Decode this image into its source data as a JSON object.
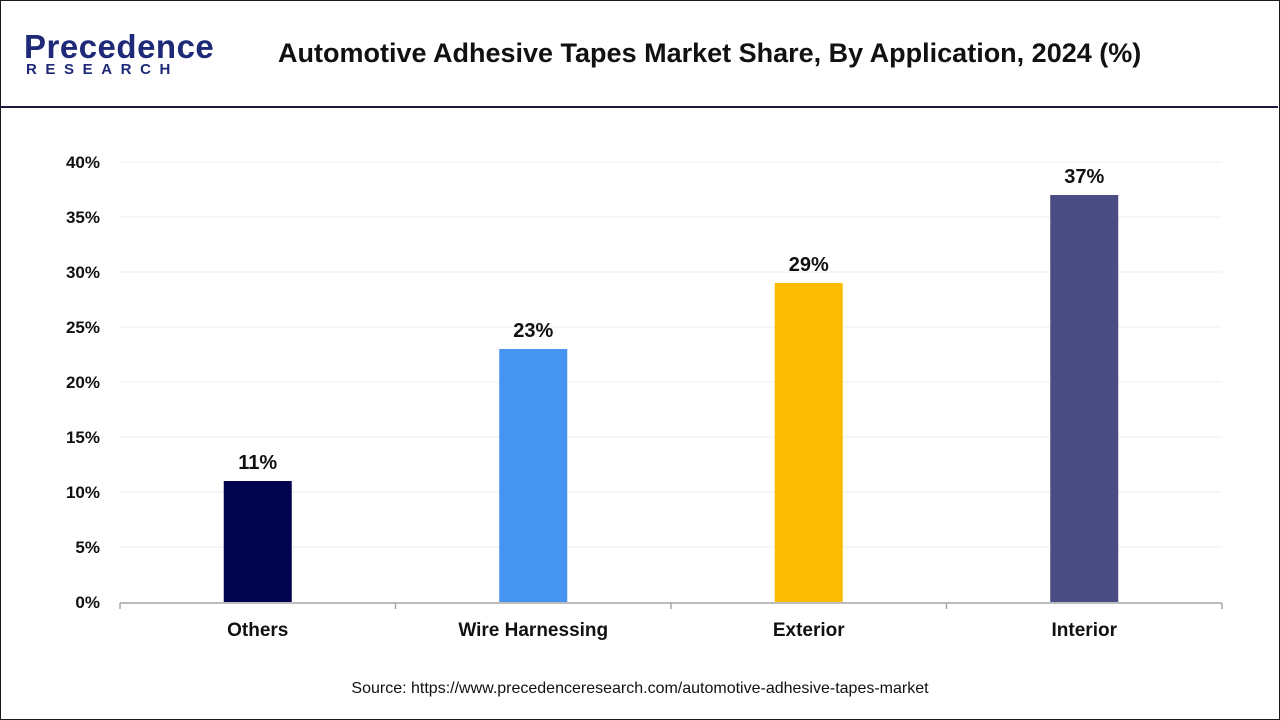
{
  "logo": {
    "main": "Precedence",
    "sub": "RESEARCH"
  },
  "header": {
    "title": "Automotive Adhesive Tapes Market Share, By Application, 2024 (%)"
  },
  "chart_data": {
    "type": "bar",
    "title": "Automotive Adhesive Tapes Market Share, By Application, 2024 (%)",
    "categories": [
      "Others",
      "Wire Harnessing",
      "Exterior",
      "Interior"
    ],
    "values": [
      11,
      23,
      29,
      37
    ],
    "data_labels": [
      "11%",
      "23%",
      "29%",
      "37%"
    ],
    "colors": [
      "#02034f",
      "#4594f0",
      "#fcbc04",
      "#4a4c84"
    ],
    "ylim": [
      0,
      40
    ],
    "yticks": [
      0,
      5,
      10,
      15,
      20,
      25,
      30,
      35,
      40
    ],
    "ytick_labels": [
      "0%",
      "5%",
      "10%",
      "15%",
      "20%",
      "25%",
      "30%",
      "35%",
      "40%"
    ],
    "grid": true,
    "xlabel": "",
    "ylabel": ""
  },
  "footer": {
    "source": "Source: https://www.precedenceresearch.com/automotive-adhesive-tapes-market"
  }
}
